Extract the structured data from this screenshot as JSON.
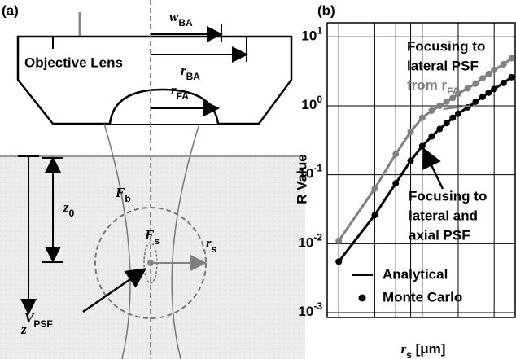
{
  "diagram": {
    "panel_label": "(a)",
    "w_ba": {
      "main": "w",
      "sub": "BA"
    },
    "r_ba": {
      "main": "r",
      "sub": "BA"
    },
    "lens": "Objective Lens",
    "r_fa": {
      "main": "r",
      "sub": "FA"
    },
    "f_b": {
      "main": "F",
      "sub": "b"
    },
    "z0": {
      "main": "z",
      "sub": "0"
    },
    "f_s": {
      "main": "F",
      "sub": "s"
    },
    "r_s": {
      "main": "r",
      "sub": "s"
    },
    "v_psf": {
      "main": "V",
      "sub": "PSF"
    },
    "z": "z"
  },
  "chart_data": {
    "type": "line",
    "panel_label": "(b)",
    "log_x": true,
    "log_y": true,
    "grid": true,
    "ylabel": "R Value",
    "xlabel": {
      "main": "r",
      "sub": "s",
      "rest": " [μm]"
    },
    "xlim": [
      0.08,
      3
    ],
    "ylim": [
      0.00085,
      16
    ],
    "xticks": [
      0.1,
      0.5,
      1
    ],
    "xminor": [
      0.2,
      0.3,
      0.4,
      2
    ],
    "yticks": [
      {
        "value": 0.001,
        "label": {
          "main": "10",
          "sup": "-3"
        }
      },
      {
        "value": 0.01,
        "label": {
          "main": "10",
          "sup": "-2"
        }
      },
      {
        "value": 0.1,
        "label": {
          "main": "10",
          "sup": "-1"
        }
      },
      {
        "value": 1,
        "label": {
          "main": "10",
          "sup": "0"
        }
      },
      {
        "value": 10,
        "label": {
          "main": "10",
          "sup": "1"
        }
      }
    ],
    "x": [
      0.1,
      0.2,
      0.3,
      0.4,
      0.5,
      0.6,
      0.7,
      0.8,
      0.9,
      1,
      1.2,
      1.4,
      1.6,
      1.8,
      2,
      2.4,
      2.8
    ],
    "series": [
      {
        "color": "#808080",
        "values": [
          0.011,
          0.063,
          0.2,
          0.42,
          0.67,
          0.85,
          1.0,
          1.15,
          1.3,
          1.5,
          1.8,
          2.1,
          2.5,
          2.9,
          3.3,
          4.0,
          4.9
        ]
      },
      {
        "color": "#000000",
        "values": [
          0.0055,
          0.026,
          0.075,
          0.16,
          0.26,
          0.36,
          0.46,
          0.56,
          0.67,
          0.77,
          0.95,
          1.15,
          1.35,
          1.55,
          1.75,
          2.15,
          2.6
        ]
      }
    ],
    "annotations": [
      {
        "color": "#808080",
        "lines": [
          "Focusing to",
          "lateral PSF",
          {
            "main": "from r",
            "sub": "FA"
          }
        ]
      },
      {
        "color": "#000000",
        "lines": [
          "Focusing to",
          "lateral and",
          "axial PSF"
        ]
      }
    ],
    "legend": [
      {
        "label": "Analytical",
        "marker": "line"
      },
      {
        "label": "Monte Carlo",
        "marker": "dot"
      }
    ]
  }
}
